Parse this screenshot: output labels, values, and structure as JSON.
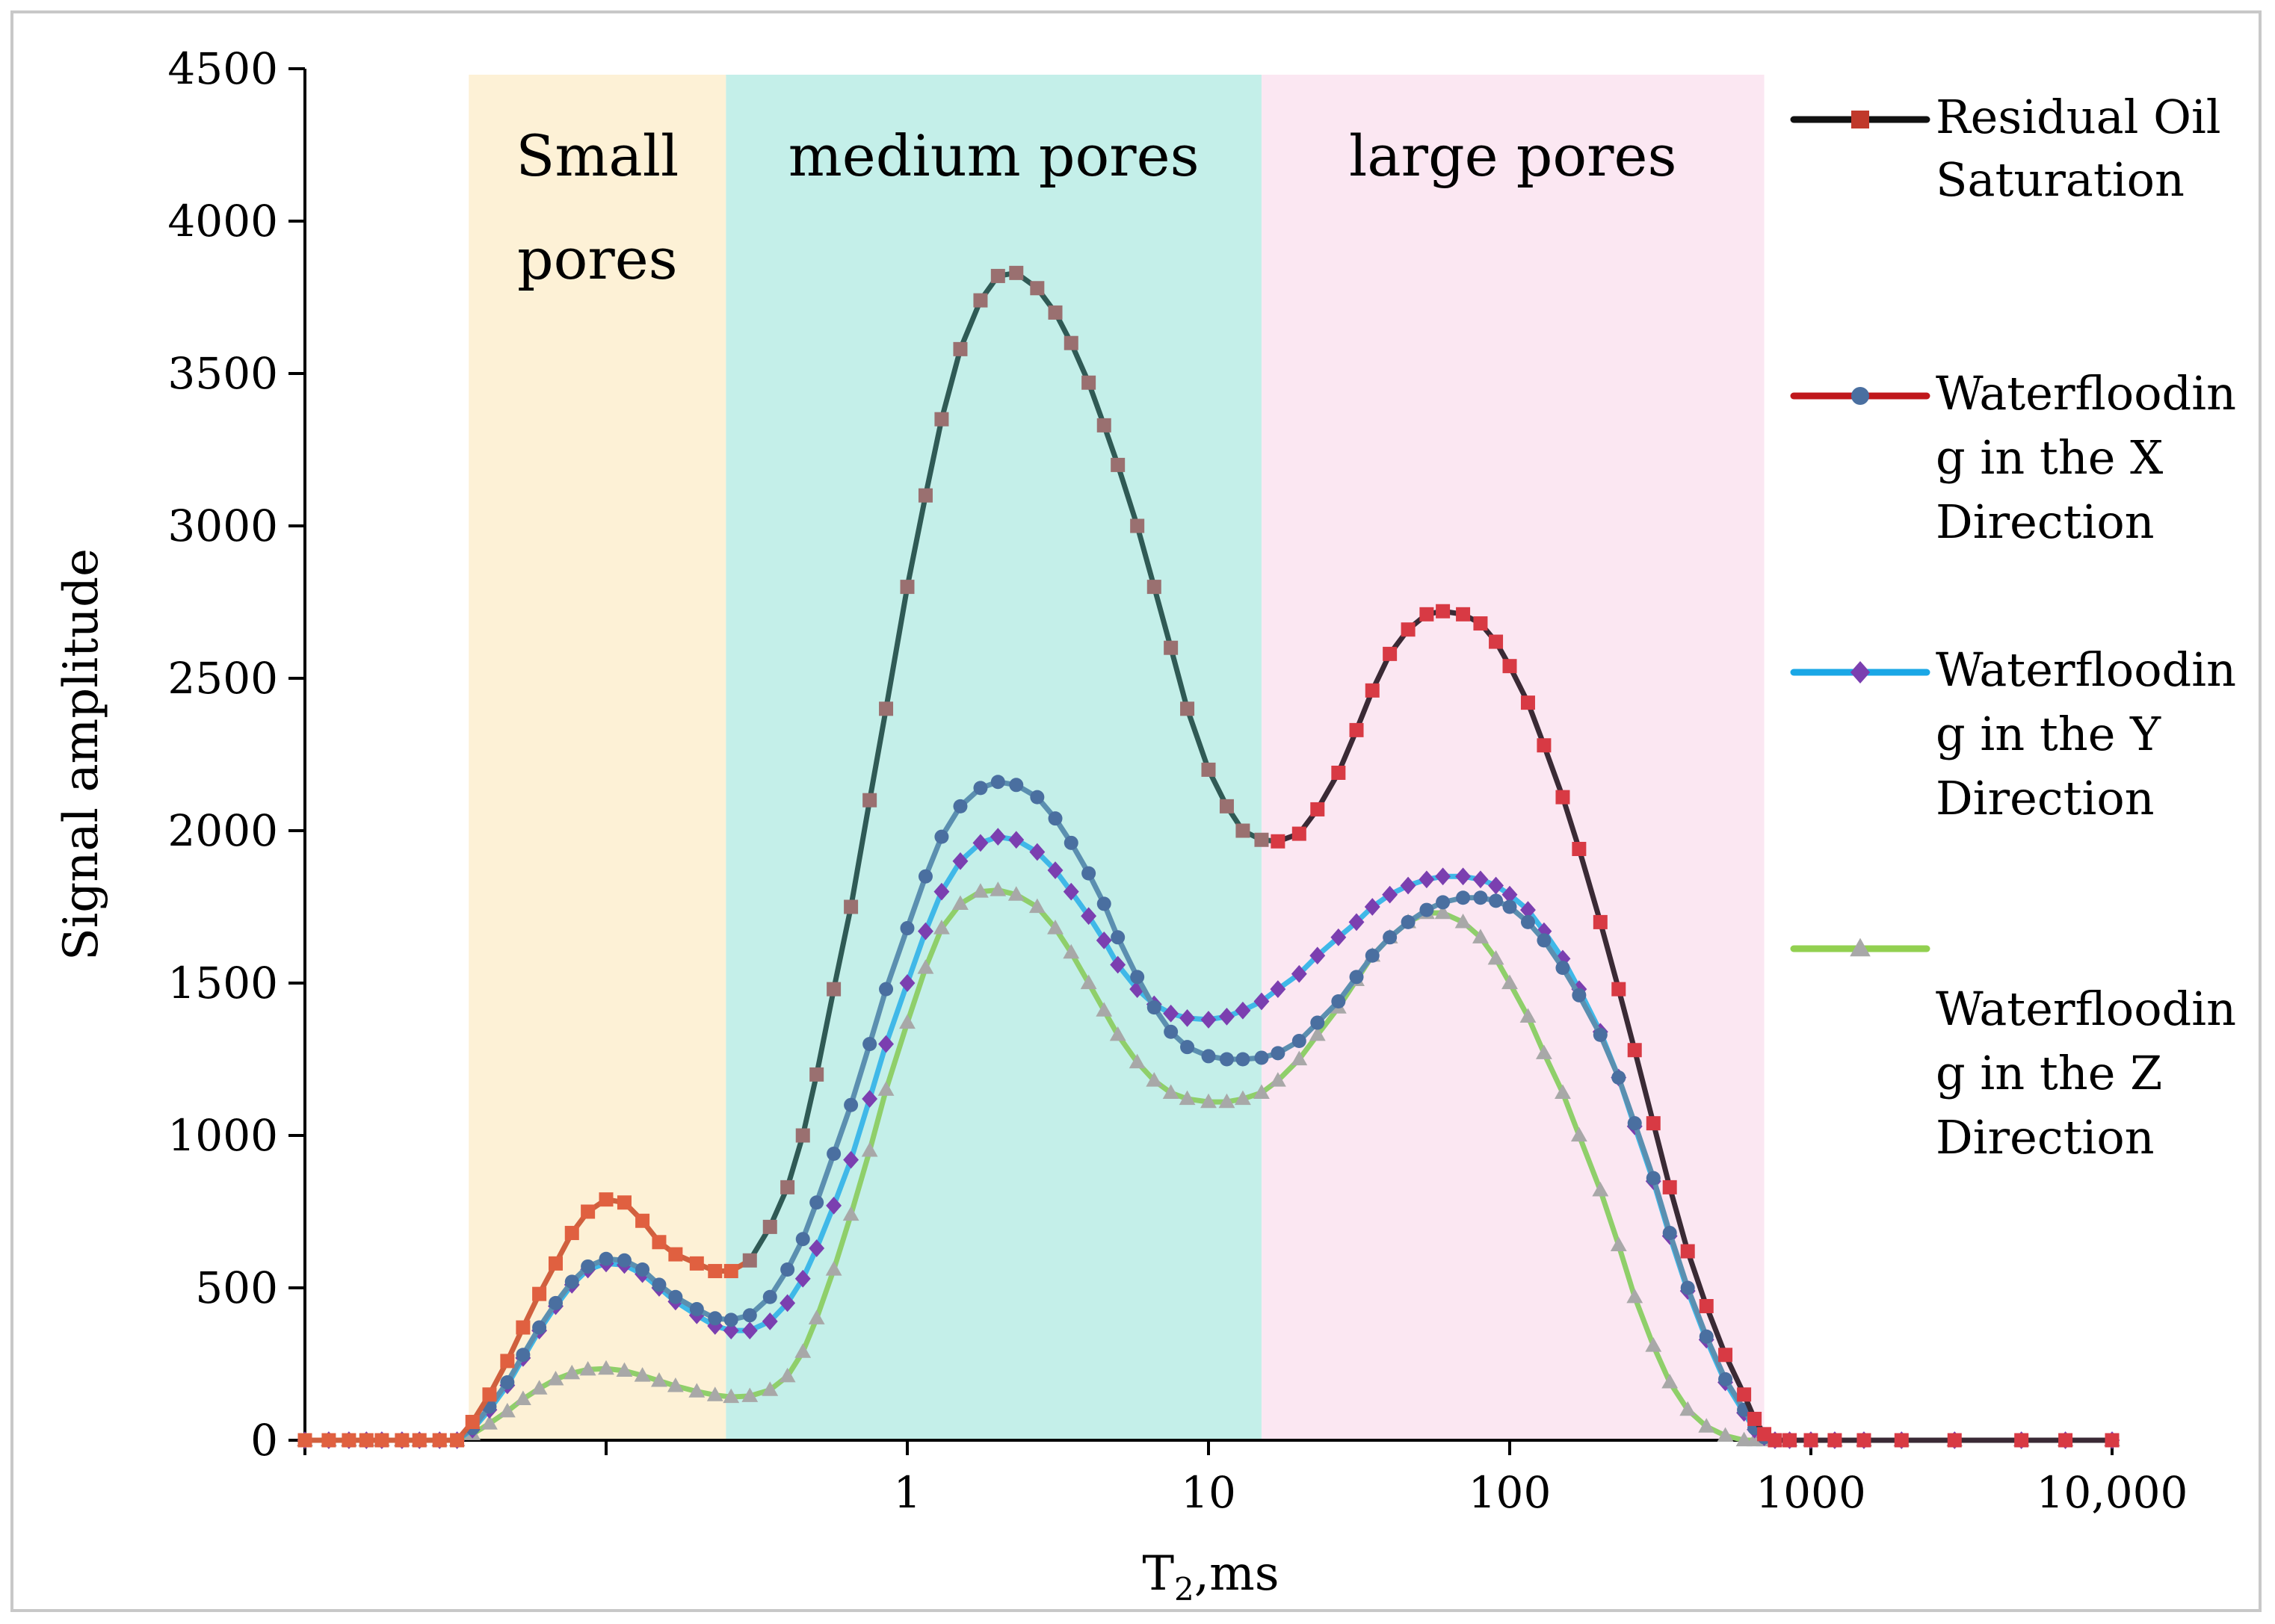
{
  "chart_data": {
    "type": "line",
    "title": "",
    "xlabel": "T",
    "xlabel_sub": "2",
    "xlabel_suffix": ",ms",
    "ylabel": "Signal amplitude",
    "x_scale": "log",
    "xlim": [
      0.01,
      10000
    ],
    "ylim": [
      0,
      4500
    ],
    "yticks": [
      0,
      500,
      1000,
      1500,
      2000,
      2500,
      3000,
      3500,
      4000,
      4500
    ],
    "xtick_labels": [
      {
        "value": 1,
        "label": "1"
      },
      {
        "value": 10,
        "label": "10"
      },
      {
        "value": 100,
        "label": "100"
      },
      {
        "value": 1000,
        "label": "1000"
      },
      {
        "value": 10000,
        "label": "10,000"
      }
    ],
    "grid": false,
    "legend_position": "right",
    "regions": [
      {
        "label_lines": [
          "Small",
          "pores"
        ],
        "x_start": 0.035,
        "x_end": 0.25,
        "color": "#fdf1d6"
      },
      {
        "label_lines": [
          "medium pores"
        ],
        "x_start": 0.25,
        "x_end": 15,
        "color": "#c4efe9"
      },
      {
        "label_lines": [
          "large pores"
        ],
        "x_start": 15,
        "x_end": 700,
        "color": "#fbe7f2"
      }
    ],
    "series": [
      {
        "name": "Residual Oil Saturation",
        "legend_lines": [
          "Residual Oil",
          "Saturation"
        ],
        "line_color": "#2f4f4f",
        "legend_line_color": "#111111",
        "marker": "square",
        "marker_color": "#c0392b",
        "segments": [
          {
            "until": 0.26,
            "line_color": "#d0603e",
            "marker_color": "#e06040"
          },
          {
            "until": 15,
            "line_color": "#2f5a55",
            "marker_color": "#9a7070"
          },
          {
            "until": 20000,
            "line_color": "#3a2a35",
            "marker_color": "#d83a44"
          }
        ],
        "x": [
          0.01,
          0.012,
          0.014,
          0.016,
          0.018,
          0.021,
          0.024,
          0.028,
          0.032,
          0.036,
          0.041,
          0.047,
          0.053,
          0.06,
          0.068,
          0.077,
          0.087,
          0.1,
          0.115,
          0.132,
          0.15,
          0.17,
          0.2,
          0.23,
          0.26,
          0.3,
          0.35,
          0.4,
          0.45,
          0.5,
          0.57,
          0.65,
          0.75,
          0.85,
          1,
          1.15,
          1.3,
          1.5,
          1.75,
          2,
          2.3,
          2.7,
          3.1,
          3.5,
          4,
          4.5,
          5,
          5.8,
          6.6,
          7.5,
          8.5,
          10,
          11.5,
          13,
          15,
          17,
          20,
          23,
          27,
          31,
          35,
          40,
          46,
          53,
          60,
          70,
          80,
          90,
          100,
          115,
          130,
          150,
          170,
          200,
          230,
          260,
          300,
          340,
          390,
          450,
          520,
          600,
          650,
          700,
          760,
          850,
          1000,
          1200,
          1500,
          2000,
          3000,
          5000,
          7000,
          10000
        ],
        "y": [
          0,
          0,
          0,
          0,
          0,
          0,
          0,
          0,
          0,
          60,
          150,
          260,
          370,
          480,
          580,
          680,
          750,
          790,
          780,
          720,
          650,
          610,
          580,
          555,
          555,
          590,
          700,
          830,
          1000,
          1200,
          1480,
          1750,
          2100,
          2400,
          2800,
          3100,
          3350,
          3580,
          3740,
          3820,
          3830,
          3780,
          3700,
          3600,
          3470,
          3330,
          3200,
          3000,
          2800,
          2600,
          2400,
          2200,
          2080,
          2000,
          1970,
          1965,
          1990,
          2070,
          2190,
          2330,
          2460,
          2580,
          2660,
          2710,
          2720,
          2710,
          2680,
          2620,
          2540,
          2420,
          2280,
          2110,
          1940,
          1700,
          1480,
          1280,
          1040,
          830,
          620,
          440,
          280,
          150,
          70,
          20,
          0,
          0,
          0,
          0,
          0,
          0,
          0,
          0,
          0,
          0
        ]
      },
      {
        "name": "Waterflooding in the X Direction",
        "legend_lines": [
          "Waterfloodin",
          "g in the X",
          "Direction"
        ],
        "line_color": "#5b8fb0",
        "legend_line_color": "#c0181c",
        "marker": "circle",
        "marker_color": "#4a6fa0",
        "x": [
          0.01,
          0.012,
          0.014,
          0.016,
          0.018,
          0.021,
          0.024,
          0.028,
          0.032,
          0.036,
          0.041,
          0.047,
          0.053,
          0.06,
          0.068,
          0.077,
          0.087,
          0.1,
          0.115,
          0.132,
          0.15,
          0.17,
          0.2,
          0.23,
          0.26,
          0.3,
          0.35,
          0.4,
          0.45,
          0.5,
          0.57,
          0.65,
          0.75,
          0.85,
          1,
          1.15,
          1.3,
          1.5,
          1.75,
          2,
          2.3,
          2.7,
          3.1,
          3.5,
          4,
          4.5,
          5,
          5.8,
          6.6,
          7.5,
          8.5,
          10,
          11.5,
          13,
          15,
          17,
          20,
          23,
          27,
          31,
          35,
          40,
          46,
          53,
          60,
          70,
          80,
          90,
          100,
          115,
          130,
          150,
          170,
          200,
          230,
          260,
          300,
          340,
          390,
          450,
          520,
          600,
          650,
          700,
          760,
          850,
          1000,
          1200,
          1500,
          2000,
          3000,
          5000,
          7000,
          10000
        ],
        "y": [
          0,
          0,
          0,
          0,
          0,
          0,
          0,
          0,
          0,
          40,
          110,
          190,
          280,
          370,
          450,
          520,
          570,
          595,
          590,
          560,
          510,
          470,
          430,
          400,
          395,
          410,
          470,
          560,
          660,
          780,
          940,
          1100,
          1300,
          1480,
          1680,
          1850,
          1980,
          2080,
          2140,
          2160,
          2150,
          2110,
          2040,
          1960,
          1860,
          1760,
          1650,
          1520,
          1420,
          1340,
          1290,
          1260,
          1250,
          1250,
          1255,
          1270,
          1310,
          1370,
          1440,
          1520,
          1590,
          1650,
          1700,
          1740,
          1765,
          1780,
          1780,
          1770,
          1750,
          1700,
          1640,
          1550,
          1460,
          1330,
          1190,
          1040,
          860,
          680,
          500,
          340,
          200,
          100,
          40,
          10,
          0,
          0,
          0,
          0,
          0,
          0,
          0,
          0,
          0,
          0
        ]
      },
      {
        "name": "Waterflooding in the Y Direction",
        "legend_lines": [
          "Waterfloodin",
          "g in the Y",
          "Direction"
        ],
        "line_color": "#3fb8e8",
        "legend_line_color": "#1aa7e6",
        "marker": "diamond",
        "marker_color": "#7b3fb0",
        "x": [
          0.01,
          0.012,
          0.014,
          0.016,
          0.018,
          0.021,
          0.024,
          0.028,
          0.032,
          0.036,
          0.041,
          0.047,
          0.053,
          0.06,
          0.068,
          0.077,
          0.087,
          0.1,
          0.115,
          0.132,
          0.15,
          0.17,
          0.2,
          0.23,
          0.26,
          0.3,
          0.35,
          0.4,
          0.45,
          0.5,
          0.57,
          0.65,
          0.75,
          0.85,
          1,
          1.15,
          1.3,
          1.5,
          1.75,
          2,
          2.3,
          2.7,
          3.1,
          3.5,
          4,
          4.5,
          5,
          5.8,
          6.6,
          7.5,
          8.5,
          10,
          11.5,
          13,
          15,
          17,
          20,
          23,
          27,
          31,
          35,
          40,
          46,
          53,
          60,
          70,
          80,
          90,
          100,
          115,
          130,
          150,
          170,
          200,
          230,
          260,
          300,
          340,
          390,
          450,
          520,
          600,
          650,
          700,
          760,
          850,
          1000,
          1200,
          1500,
          2000,
          3000,
          5000,
          7000,
          10000
        ],
        "y": [
          0,
          0,
          0,
          0,
          0,
          0,
          0,
          0,
          0,
          35,
          100,
          180,
          270,
          360,
          440,
          510,
          560,
          580,
          575,
          545,
          500,
          455,
          410,
          375,
          360,
          360,
          390,
          450,
          530,
          630,
          770,
          920,
          1120,
          1300,
          1500,
          1670,
          1800,
          1900,
          1960,
          1980,
          1970,
          1930,
          1870,
          1800,
          1720,
          1640,
          1560,
          1480,
          1430,
          1400,
          1385,
          1380,
          1390,
          1410,
          1440,
          1480,
          1530,
          1590,
          1650,
          1700,
          1750,
          1790,
          1820,
          1840,
          1850,
          1850,
          1840,
          1820,
          1790,
          1740,
          1670,
          1580,
          1480,
          1340,
          1190,
          1030,
          850,
          670,
          490,
          330,
          190,
          90,
          35,
          10,
          0,
          0,
          0,
          0,
          0,
          0,
          0,
          0,
          0,
          0
        ]
      },
      {
        "name": "Waterflooding in the Z Direction",
        "legend_lines": [
          "Waterfloodin",
          "g in the Z",
          "Direction"
        ],
        "line_color": "#8fcf6a",
        "legend_line_color": "#92d050",
        "marker": "triangle",
        "marker_color": "#a8a8a8",
        "x": [
          0.01,
          0.012,
          0.014,
          0.016,
          0.018,
          0.021,
          0.024,
          0.028,
          0.032,
          0.036,
          0.041,
          0.047,
          0.053,
          0.06,
          0.068,
          0.077,
          0.087,
          0.1,
          0.115,
          0.132,
          0.15,
          0.17,
          0.2,
          0.23,
          0.26,
          0.3,
          0.35,
          0.4,
          0.45,
          0.5,
          0.57,
          0.65,
          0.75,
          0.85,
          1,
          1.15,
          1.3,
          1.5,
          1.75,
          2,
          2.3,
          2.7,
          3.1,
          3.5,
          4,
          4.5,
          5,
          5.8,
          6.6,
          7.5,
          8.5,
          10,
          11.5,
          13,
          15,
          17,
          20,
          23,
          27,
          31,
          35,
          40,
          46,
          53,
          60,
          70,
          80,
          90,
          100,
          115,
          130,
          150,
          170,
          200,
          230,
          260,
          300,
          340,
          390,
          450,
          520,
          600,
          650,
          700,
          760,
          850,
          1000,
          1200,
          1500,
          2000,
          3000,
          5000,
          7000,
          10000
        ],
        "y": [
          0,
          0,
          0,
          0,
          0,
          0,
          0,
          0,
          0,
          20,
          55,
          95,
          135,
          170,
          200,
          220,
          232,
          235,
          228,
          212,
          195,
          178,
          160,
          148,
          142,
          145,
          165,
          210,
          290,
          400,
          560,
          740,
          950,
          1150,
          1370,
          1550,
          1680,
          1760,
          1800,
          1805,
          1790,
          1750,
          1680,
          1600,
          1500,
          1410,
          1330,
          1240,
          1180,
          1140,
          1120,
          1110,
          1110,
          1120,
          1140,
          1180,
          1250,
          1330,
          1420,
          1510,
          1590,
          1650,
          1700,
          1730,
          1730,
          1700,
          1650,
          1580,
          1500,
          1390,
          1270,
          1140,
          1000,
          820,
          640,
          470,
          310,
          190,
          100,
          45,
          15,
          0,
          0,
          0,
          0,
          0,
          0,
          0,
          0,
          0,
          0,
          0,
          0,
          0
        ]
      }
    ]
  }
}
